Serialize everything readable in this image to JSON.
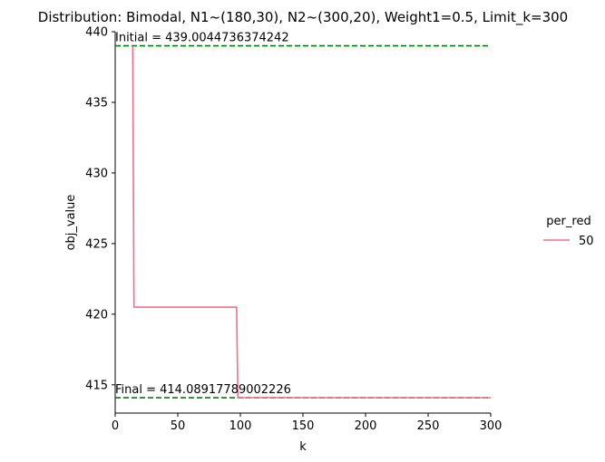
{
  "chart_data": {
    "type": "line",
    "title": "Distribution: Bimodal, N1~(180,30), N2~(300,20), Weight1=0.5, Limit_k=300",
    "xlabel": "k",
    "ylabel": "obj_value",
    "xlim": [
      0,
      300
    ],
    "ylim": [
      413.0,
      440.0
    ],
    "x_ticks": [
      0,
      50,
      100,
      150,
      200,
      250,
      300
    ],
    "y_ticks": [
      415,
      420,
      425,
      430,
      435,
      440
    ],
    "grid": false,
    "legend_title": "per_red",
    "legend_placement": "right",
    "series": [
      {
        "name": "50",
        "color": "#f0708a",
        "points": [
          [
            14,
            439.0
          ],
          [
            15,
            420.5
          ],
          [
            97,
            420.5
          ],
          [
            98,
            414.09
          ],
          [
            300,
            414.09
          ]
        ]
      }
    ],
    "reference_lines": [
      {
        "y": 439.0044736374242,
        "color": "#008000",
        "style": "dashed"
      },
      {
        "y": 414.08917789002226,
        "color": "#008000",
        "style": "dashed"
      }
    ],
    "annotations": [
      {
        "text": "Initial = 439.0044736374242",
        "x": 0,
        "y": 439.0044736374242
      },
      {
        "text": "Final = 414.08917789002226",
        "x": 0,
        "y": 414.08917789002226
      }
    ]
  }
}
